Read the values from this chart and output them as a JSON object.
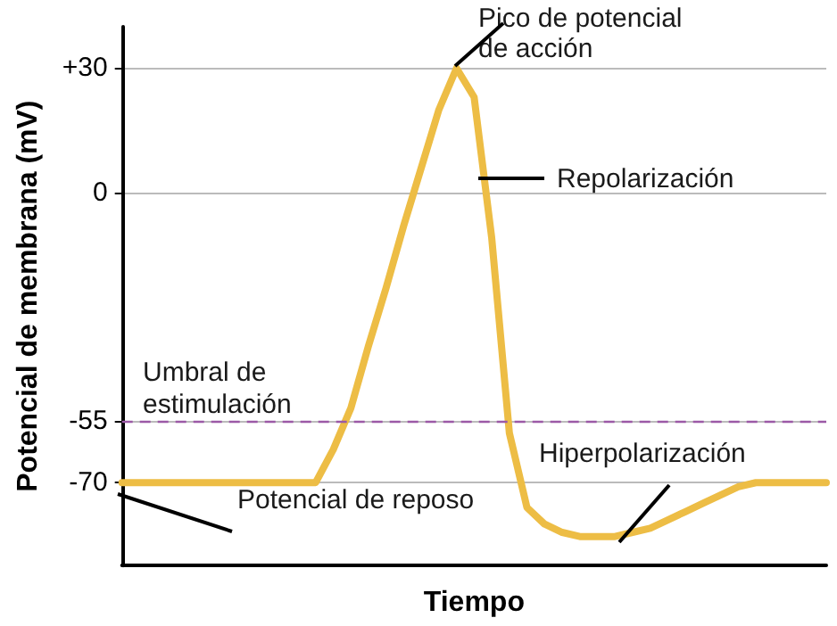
{
  "chart_data": {
    "type": "line",
    "xlabel": "Tiempo",
    "ylabel": "Potencial de membrana (mV)",
    "categories": [
      null,
      null,
      null,
      null,
      null,
      null,
      null,
      null,
      null,
      null,
      null,
      null,
      null,
      null,
      null,
      null,
      null,
      null,
      null,
      null,
      null,
      null,
      null,
      null,
      null,
      null,
      null,
      null,
      null,
      null,
      null,
      null,
      null,
      null,
      null,
      null,
      null,
      null,
      null,
      null,
      null
    ],
    "series": [
      {
        "color": "#edbd45",
        "values": [
          -70,
          -70,
          -70,
          -70,
          -70,
          -70,
          -70,
          -70,
          -70,
          -70,
          -70,
          -70,
          -62,
          -52,
          -37,
          -23,
          -8,
          6,
          20,
          30,
          23,
          -11,
          -58,
          -76,
          -80,
          -82,
          -83,
          -83,
          -83,
          -82,
          -81,
          -79,
          -77,
          -75,
          -73,
          -71,
          -70,
          -70,
          -70,
          -70,
          -70
        ]
      }
    ],
    "ylim": [
      -90,
      40
    ],
    "yticks": [
      {
        "value": 30,
        "label": "+30"
      },
      0,
      -55,
      -70
    ],
    "grid": "y",
    "marker": "none",
    "line_style": "solid",
    "ref_lines": [
      {
        "axis": "y",
        "value": -55,
        "label": "Umbral de estimulación",
        "color": "#9b59a6",
        "line_style": "dashed"
      }
    ],
    "annotations": [
      "Pico de potencial de acción",
      "Repolarización",
      "Hiperpolarización",
      "Potencial de reposo"
    ]
  }
}
